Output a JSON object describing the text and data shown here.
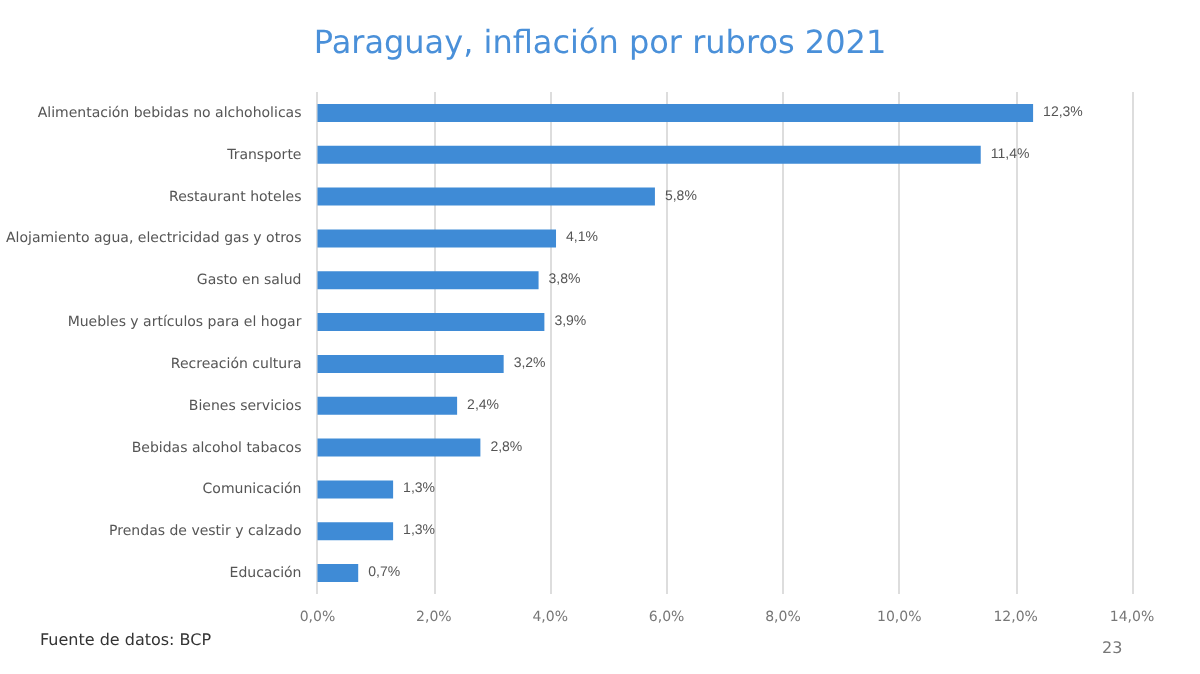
{
  "chart_data": {
    "type": "bar",
    "orientation": "horizontal",
    "title": "Paraguay, inflación por rubros 2021",
    "categories": [
      "Alimentación bebidas no alchoholicas",
      "Transporte",
      "Restaurant hoteles",
      "Alojamiento agua, electricidad gas y otros",
      "Gasto en salud",
      "Muebles y artículos para el hogar",
      "Recreación cultura",
      "Bienes servicios",
      "Bebidas alcohol tabacos",
      "Comunicación",
      "Prendas de vestir y calzado",
      "Educación"
    ],
    "values": [
      12.3,
      11.4,
      5.8,
      4.1,
      3.8,
      3.9,
      3.2,
      2.4,
      2.8,
      1.3,
      1.3,
      0.7
    ],
    "value_labels": [
      "12,3%",
      "11,4%",
      "5,8%",
      "4,1%",
      "3,8%",
      "3,9%",
      "3,2%",
      "2,4%",
      "2,8%",
      "1,3%",
      "1,3%",
      "0,7%"
    ],
    "color": "#3f8bd6",
    "xlim": [
      0,
      14
    ],
    "xticks": [
      {
        "value": 0,
        "label": "0,0%"
      },
      {
        "value": 2,
        "label": "2,0%"
      },
      {
        "value": 4,
        "label": "4,0%"
      },
      {
        "value": 6,
        "label": "6,0%"
      },
      {
        "value": 8,
        "label": "8,0%"
      },
      {
        "value": 10,
        "label": "10,0%"
      },
      {
        "value": 12,
        "label": "12,0%"
      },
      {
        "value": 14,
        "label": "14,0%"
      }
    ],
    "grid": "x",
    "annotations": [
      "Fuente de datos: BCP",
      "23"
    ]
  }
}
